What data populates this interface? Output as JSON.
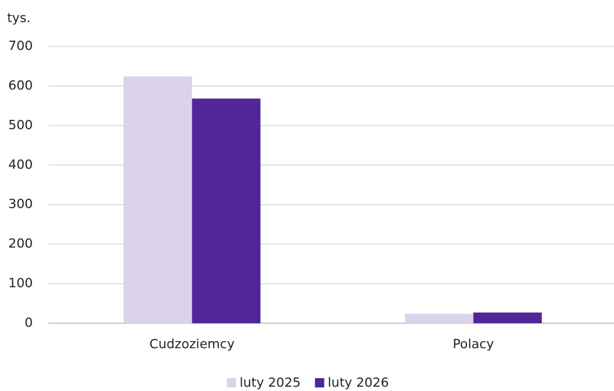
{
  "chart_data": {
    "type": "bar",
    "y_axis_label": "tys.",
    "categories": [
      "Cudzoziemcy",
      "Polacy"
    ],
    "series": [
      {
        "name": "luty 2025",
        "color": "#dcd3ea",
        "values": [
          624,
          24
        ]
      },
      {
        "name": "luty 2026",
        "color": "#512698",
        "values": [
          568,
          27
        ]
      }
    ],
    "ylim": [
      0,
      700
    ],
    "yticks": [
      0,
      100,
      200,
      300,
      400,
      500,
      600,
      700
    ],
    "grid": true,
    "legend": "bottom"
  }
}
